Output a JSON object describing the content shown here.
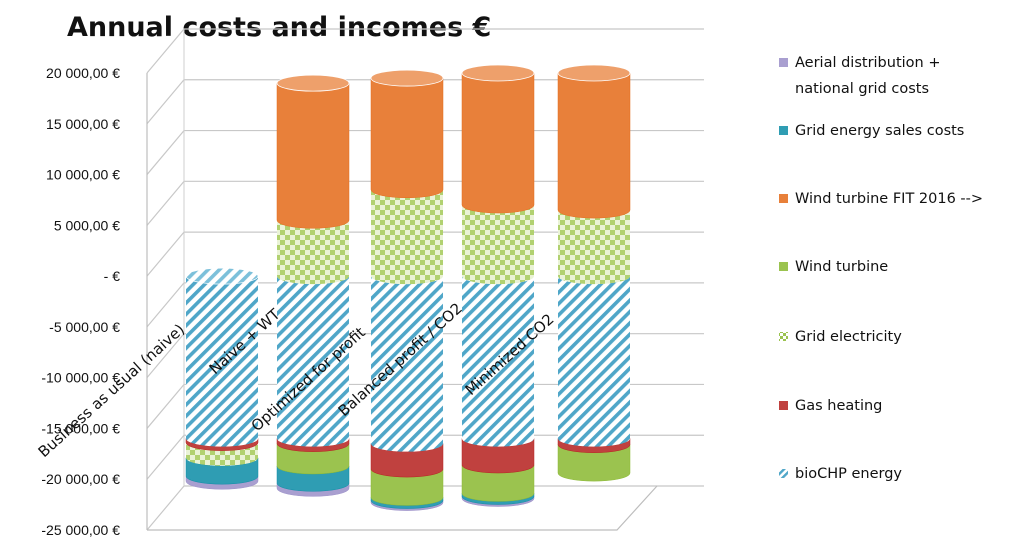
{
  "chart_data": {
    "type": "bar",
    "title": "Annual costs and incomes €",
    "xlabel": "",
    "ylabel": "",
    "stacked": true,
    "ylim": [
      -25000,
      20000
    ],
    "yticks": [
      20000,
      15000,
      10000,
      5000,
      0,
      -5000,
      -10000,
      -15000,
      -20000,
      -25000
    ],
    "ytick_labels": [
      "20 000,00 €",
      "15 000,00 €",
      "10 000,00 €",
      "5 000,00 €",
      "- €",
      "-5 000,00 €",
      "-10 000,00 €",
      "-15 000,00 €",
      "-20 000,00 €",
      "-25 000,00 €"
    ],
    "grid": true,
    "legend_position": "right",
    "categories": [
      "Business as usual (naive)",
      "Naive + WT",
      "Optimized for profit",
      "Balanced profit / CO2",
      "Minimized CO2"
    ],
    "series": [
      {
        "name": "Aerial distribution + national grid costs",
        "color": "#a99fd0",
        "pattern": "solid",
        "values": [
          -500,
          -500,
          -200,
          -200,
          0
        ]
      },
      {
        "name": "Grid energy sales costs",
        "color": "#2f9db3",
        "pattern": "solid",
        "values": [
          -1800,
          -1700,
          -300,
          -300,
          0
        ]
      },
      {
        "name": "Wind turbine FIT 2016 -->",
        "color": "#e8803a",
        "pattern": "solid",
        "values": [
          0,
          13500,
          11000,
          13000,
          13500
        ]
      },
      {
        "name": "Wind turbine",
        "color": "#9bc34f",
        "pattern": "solid",
        "values": [
          0,
          -2200,
          -2800,
          -2800,
          -2800
        ]
      },
      {
        "name": "Grid electricity",
        "color": "#c3dc8c",
        "pattern": "checker",
        "values": [
          -1500,
          5500,
          8500,
          7000,
          6500
        ]
      },
      {
        "name": "Gas heating",
        "color": "#c0413f",
        "pattern": "solid",
        "values": [
          -400,
          -500,
          -2500,
          -2600,
          -600
        ]
      },
      {
        "name": "bioCHP energy",
        "color": "#4fa6c8",
        "pattern": "hatch",
        "values": [
          -16000,
          -16000,
          -16500,
          -16000,
          -16000
        ]
      }
    ]
  }
}
